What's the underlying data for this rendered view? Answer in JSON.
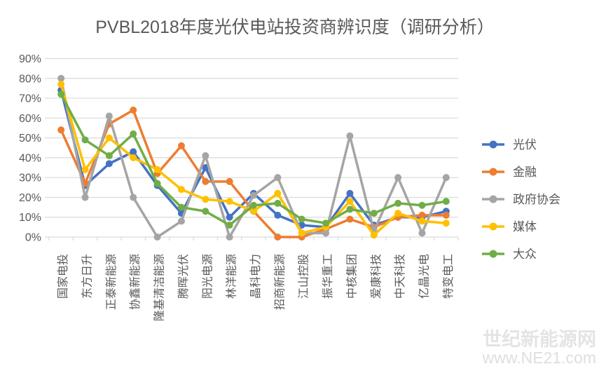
{
  "chart_data": {
    "type": "line",
    "title": "PVBL2018年度光伏电站投资商辨识度（调研分析）",
    "categories": [
      "国家电投",
      "东方日升",
      "正泰新能源",
      "协鑫新能源",
      "隆基清洁能源",
      "腾晖光伏",
      "阳光电源",
      "林洋能源",
      "晶科电力",
      "招商新能源",
      "江山控股",
      "振华重工",
      "中核集团",
      "爱康科技",
      "中天科技",
      "亿晶光电",
      "特变电工"
    ],
    "series": [
      {
        "name": "光伏",
        "color": "#4472C4",
        "values": [
          74,
          26,
          37,
          43,
          26,
          12,
          35,
          10,
          22,
          11,
          6,
          5,
          22,
          6,
          10,
          10,
          13
        ]
      },
      {
        "name": "金融",
        "color": "#ED7D31",
        "values": [
          54,
          27,
          57,
          64,
          32,
          46,
          28,
          28,
          13,
          0,
          0,
          4,
          9,
          5,
          10,
          11,
          11
        ]
      },
      {
        "name": "政府协会",
        "color": "#A5A5A5",
        "values": [
          80,
          20,
          61,
          20,
          0,
          8,
          41,
          0,
          21,
          30,
          2,
          2,
          51,
          3,
          30,
          2,
          30
        ]
      },
      {
        "name": "媒体",
        "color": "#FFC000",
        "values": [
          77,
          34,
          50,
          40,
          34,
          24,
          19,
          18,
          13,
          22,
          2,
          5,
          18,
          1,
          12,
          8,
          7
        ]
      },
      {
        "name": "大众",
        "color": "#70AD47",
        "values": [
          72,
          49,
          41,
          52,
          27,
          15,
          13,
          6,
          16,
          17,
          9,
          7,
          14,
          12,
          17,
          16,
          18
        ]
      }
    ],
    "ylim": [
      0,
      90
    ],
    "y_tick_step": 10,
    "y_tick_suffix": "%",
    "y_tick_labels": [
      "0%",
      "10%",
      "20%",
      "30%",
      "40%",
      "50%",
      "60%",
      "70%",
      "80%",
      "90%"
    ],
    "grid": "horizontal",
    "legend_position": "right"
  },
  "watermark": {
    "line1": "世纪新能源网",
    "line2": "www.NE21.com"
  },
  "colors": {
    "background": "#FFFFFF",
    "gridline": "#D9D9D9",
    "axis_text": "#595959",
    "title_text": "#595959",
    "watermark1": "#E4E4E4",
    "watermark2": "#DEDEDE"
  }
}
